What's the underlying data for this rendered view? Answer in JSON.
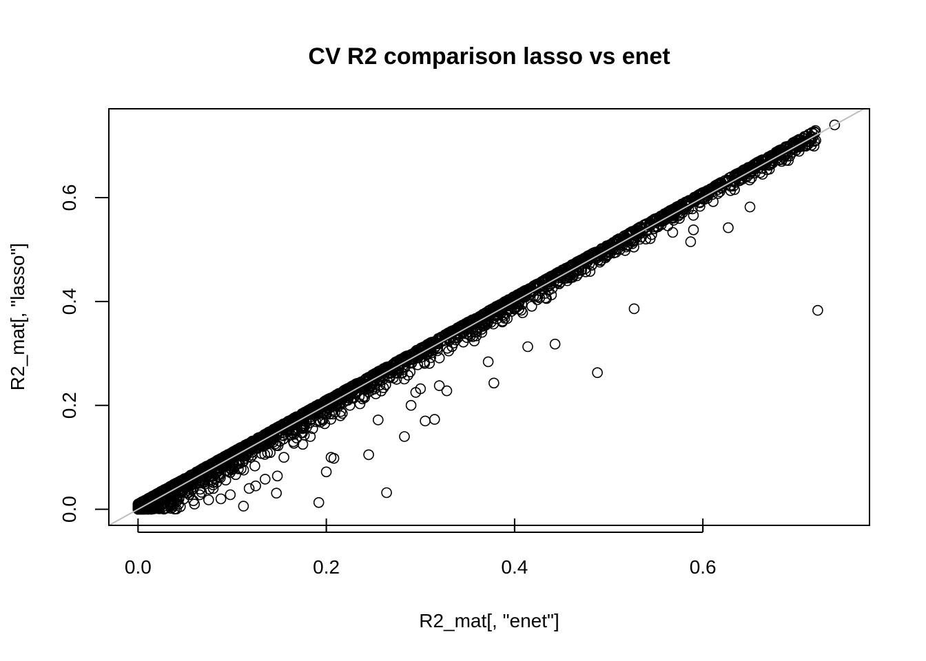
{
  "chart_data": {
    "type": "scatter",
    "title": "CV R2 comparison lasso vs enet",
    "xlabel": "R2_mat[, \"enet\"]",
    "ylabel": "R2_mat[, \"lasso\"]",
    "xlim": [
      -0.031,
      0.777
    ],
    "ylim": [
      -0.031,
      0.771
    ],
    "xticks": [
      0.0,
      0.2,
      0.4,
      0.6
    ],
    "yticks": [
      0.0,
      0.2,
      0.4,
      0.6
    ],
    "xtick_labels": [
      "0.0",
      "0.2",
      "0.4",
      "0.6"
    ],
    "ytick_labels": [
      "0.0",
      "0.2",
      "0.4",
      "0.6"
    ],
    "reference_line": {
      "intercept": 0,
      "slope": 1,
      "color": "#bebebe"
    },
    "grid": false,
    "legend": "none",
    "marker": "open-circle",
    "points": [
      [
        0.74,
        0.74
      ],
      [
        0.722,
        0.383
      ],
      [
        0.72,
        0.71
      ],
      [
        0.712,
        0.703
      ],
      [
        0.702,
        0.697
      ],
      [
        0.695,
        0.695
      ],
      [
        0.68,
        0.677
      ],
      [
        0.673,
        0.668
      ],
      [
        0.665,
        0.662
      ],
      [
        0.652,
        0.652
      ],
      [
        0.65,
        0.582
      ],
      [
        0.645,
        0.64
      ],
      [
        0.638,
        0.632
      ],
      [
        0.627,
        0.542
      ],
      [
        0.62,
        0.618
      ],
      [
        0.61,
        0.606
      ],
      [
        0.6,
        0.597
      ],
      [
        0.59,
        0.538
      ],
      [
        0.587,
        0.515
      ],
      [
        0.58,
        0.577
      ],
      [
        0.575,
        0.56
      ],
      [
        0.568,
        0.533
      ],
      [
        0.56,
        0.557
      ],
      [
        0.548,
        0.54
      ],
      [
        0.54,
        0.535
      ],
      [
        0.53,
        0.525
      ],
      [
        0.527,
        0.386
      ],
      [
        0.52,
        0.508
      ],
      [
        0.512,
        0.5
      ],
      [
        0.5,
        0.497
      ],
      [
        0.488,
        0.263
      ],
      [
        0.482,
        0.47
      ],
      [
        0.475,
        0.463
      ],
      [
        0.466,
        0.46
      ],
      [
        0.456,
        0.44
      ],
      [
        0.45,
        0.445
      ],
      [
        0.443,
        0.318
      ],
      [
        0.43,
        0.425
      ],
      [
        0.42,
        0.41
      ],
      [
        0.414,
        0.313
      ],
      [
        0.403,
        0.39
      ],
      [
        0.395,
        0.387
      ],
      [
        0.385,
        0.385
      ],
      [
        0.378,
        0.243
      ],
      [
        0.372,
        0.284
      ],
      [
        0.365,
        0.355
      ],
      [
        0.355,
        0.347
      ],
      [
        0.345,
        0.34
      ],
      [
        0.335,
        0.32
      ],
      [
        0.328,
        0.228
      ],
      [
        0.32,
        0.238
      ],
      [
        0.315,
        0.173
      ],
      [
        0.305,
        0.17
      ],
      [
        0.3,
        0.232
      ],
      [
        0.295,
        0.225
      ],
      [
        0.29,
        0.2
      ],
      [
        0.283,
        0.14
      ],
      [
        0.275,
        0.262
      ],
      [
        0.264,
        0.032
      ],
      [
        0.255,
        0.172
      ],
      [
        0.245,
        0.105
      ],
      [
        0.235,
        0.217
      ],
      [
        0.225,
        0.2
      ],
      [
        0.215,
        0.18
      ],
      [
        0.208,
        0.098
      ],
      [
        0.205,
        0.1
      ],
      [
        0.2,
        0.072
      ],
      [
        0.192,
        0.013
      ],
      [
        0.183,
        0.14
      ],
      [
        0.175,
        0.125
      ],
      [
        0.165,
        0.13
      ],
      [
        0.155,
        0.1
      ],
      [
        0.148,
        0.064
      ],
      [
        0.147,
        0.031
      ],
      [
        0.135,
        0.058
      ],
      [
        0.125,
        0.045
      ],
      [
        0.118,
        0.04
      ],
      [
        0.112,
        0.006
      ],
      [
        0.098,
        0.028
      ],
      [
        0.088,
        0.02
      ],
      [
        0.075,
        0.018
      ],
      [
        0.06,
        0.01
      ],
      [
        0.045,
        0.005
      ],
      [
        0.03,
        0.002
      ],
      [
        0.015,
        0.001
      ]
    ],
    "dense_band": {
      "description": "many overlapping points along the diagonal",
      "x_range": [
        0.0,
        0.72
      ],
      "lasso_minus_enet_range": [
        -0.05,
        0.01
      ]
    }
  }
}
